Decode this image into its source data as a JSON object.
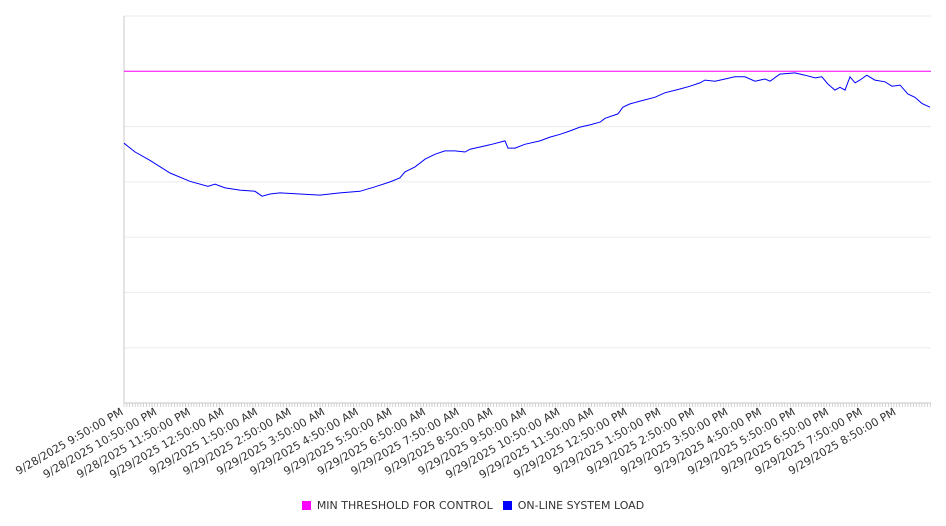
{
  "chart_data": {
    "type": "line",
    "title": "",
    "xlabel": "",
    "ylabel": "",
    "y_tick_labels_visible": false,
    "ylim": [
      0,
      7
    ],
    "xlim_hours": [
      0,
      24.02
    ],
    "grid": true,
    "legend_position": "bottom",
    "x_tick_labels": [
      "9/28/2025 9:50:00 PM",
      "9/28/2025 10:50:00 PM",
      "9/28/2025 11:50:00 PM",
      "9/29/2025 12:50:00 AM",
      "9/29/2025 1:50:00 AM",
      "9/29/2025 2:50:00 AM",
      "9/29/2025 3:50:00 AM",
      "9/29/2025 4:50:00 AM",
      "9/29/2025 5:50:00 AM",
      "9/29/2025 6:50:00 AM",
      "9/29/2025 7:50:00 AM",
      "9/29/2025 8:50:00 AM",
      "9/29/2025 9:50:00 AM",
      "9/29/2025 10:50:00 AM",
      "9/29/2025 11:50:00 AM",
      "9/29/2025 12:50:00 PM",
      "9/29/2025 1:50:00 PM",
      "9/29/2025 2:50:00 PM",
      "9/29/2025 3:50:00 PM",
      "9/29/2025 4:50:00 PM",
      "9/29/2025 5:50:00 PM",
      "9/29/2025 6:50:00 PM",
      "9/29/2025 7:50:00 PM",
      "9/29/2025 8:50:00 PM"
    ],
    "series": [
      {
        "name": "MIN THRESHOLD FOR CONTROL",
        "color": "#ff00ff",
        "x": [
          0,
          24.02
        ],
        "values": [
          6,
          6
        ]
      },
      {
        "name": "ON-LINE SYSTEM LOAD",
        "color": "#0000ff",
        "x": [
          0,
          0.33,
          0.77,
          1.37,
          1.96,
          2.5,
          2.71,
          3.01,
          3.45,
          3.9,
          4.11,
          4.35,
          4.64,
          5.24,
          5.83,
          6.43,
          7.02,
          7.47,
          7.92,
          8.21,
          8.36,
          8.66,
          8.96,
          9.26,
          9.55,
          9.85,
          10.15,
          10.3,
          10.6,
          10.89,
          11.34,
          11.43,
          11.64,
          11.93,
          12.38,
          12.68,
          12.98,
          13.27,
          13.57,
          13.87,
          14.17,
          14.32,
          14.7,
          14.85,
          15.06,
          15.36,
          15.8,
          16.1,
          16.55,
          16.85,
          17.14,
          17.29,
          17.59,
          17.89,
          18.18,
          18.48,
          18.78,
          19.08,
          19.23,
          19.52,
          19.97,
          20.27,
          20.57,
          20.77,
          20.95,
          21.16,
          21.31,
          21.46,
          21.61,
          21.76,
          21.9,
          22.11,
          22.35,
          22.65,
          22.86,
          23.1,
          23.33,
          23.54,
          23.75,
          23.99
        ],
        "values": [
          4.7,
          4.54,
          4.39,
          4.16,
          4.01,
          3.92,
          3.96,
          3.89,
          3.85,
          3.83,
          3.74,
          3.78,
          3.8,
          3.78,
          3.76,
          3.8,
          3.83,
          3.91,
          4.0,
          4.07,
          4.18,
          4.27,
          4.41,
          4.5,
          4.56,
          4.56,
          4.54,
          4.59,
          4.63,
          4.67,
          4.74,
          4.61,
          4.61,
          4.68,
          4.74,
          4.81,
          4.86,
          4.92,
          4.99,
          5.03,
          5.08,
          5.15,
          5.23,
          5.35,
          5.41,
          5.46,
          5.53,
          5.61,
          5.68,
          5.73,
          5.79,
          5.84,
          5.82,
          5.86,
          5.9,
          5.9,
          5.82,
          5.86,
          5.82,
          5.95,
          5.97,
          5.93,
          5.88,
          5.9,
          5.77,
          5.66,
          5.71,
          5.66,
          5.9,
          5.79,
          5.84,
          5.93,
          5.84,
          5.81,
          5.73,
          5.75,
          5.59,
          5.53,
          5.42,
          5.35
        ]
      }
    ]
  }
}
